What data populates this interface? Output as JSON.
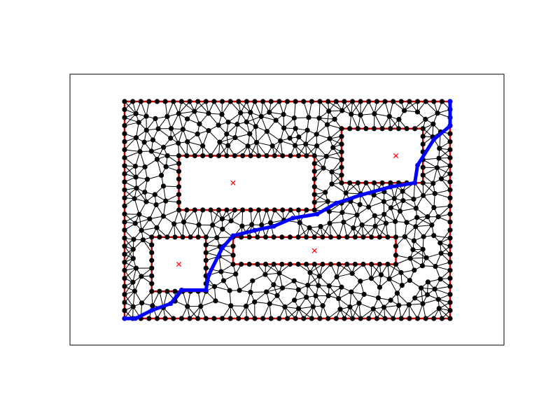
{
  "figure": {
    "domain_x": [
      0,
      12
    ],
    "domain_y": [
      0,
      8
    ],
    "colors": {
      "axes_frame": "#000000",
      "mesh_edge": "#000000",
      "mesh_node": "#000000",
      "boundary": "#cc0000",
      "hole_marker": "#ff0000",
      "path": "#0000ff"
    }
  },
  "chart_data": {
    "type": "diagram",
    "grid": false,
    "legend": "none",
    "outer_boundary": {
      "xmin": 0,
      "xmax": 12,
      "ymin": 0,
      "ymax": 8
    },
    "obstacles": [
      {
        "id": "rect-center-top",
        "xmin": 2,
        "xmax": 7,
        "ymin": 4,
        "ymax": 6,
        "marker": [
          4,
          5
        ]
      },
      {
        "id": "rect-right-top",
        "xmin": 8,
        "xmax": 11,
        "ymin": 5,
        "ymax": 7,
        "marker": [
          10,
          6
        ]
      },
      {
        "id": "rect-left-bottom",
        "xmin": 1,
        "xmax": 3,
        "ymin": 1,
        "ymax": 3,
        "marker": [
          2,
          2
        ]
      },
      {
        "id": "rect-center-bottom",
        "xmin": 4,
        "xmax": 10,
        "ymin": 2,
        "ymax": 3,
        "marker": [
          7,
          2.5
        ]
      }
    ],
    "shortest_path": [
      [
        0,
        0
      ],
      [
        0.4,
        0
      ],
      [
        1,
        0.3
      ],
      [
        1.7,
        0.55
      ],
      [
        2.1,
        1.05
      ],
      [
        3,
        1.05
      ],
      [
        3.1,
        1.6
      ],
      [
        3.6,
        2.6
      ],
      [
        4,
        3.05
      ],
      [
        4.8,
        3.25
      ],
      [
        5.5,
        3.4
      ],
      [
        6.2,
        3.7
      ],
      [
        7.1,
        3.85
      ],
      [
        7.8,
        4.25
      ],
      [
        8.7,
        4.55
      ],
      [
        9.8,
        4.85
      ],
      [
        10.7,
        5.0
      ],
      [
        10.8,
        5.65
      ],
      [
        11.4,
        6.6
      ],
      [
        12,
        7.1
      ],
      [
        12,
        8
      ]
    ]
  }
}
